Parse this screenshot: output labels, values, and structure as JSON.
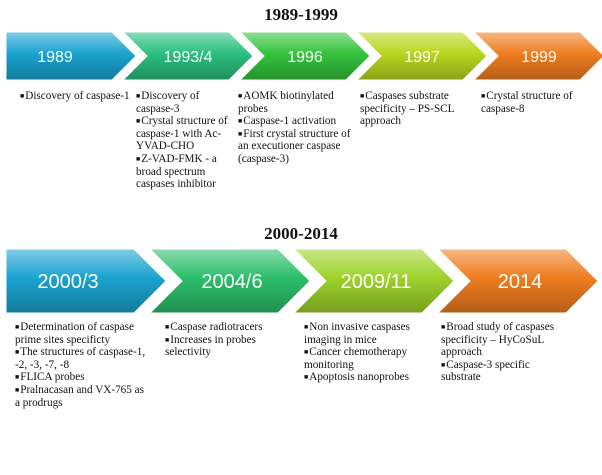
{
  "periods": [
    {
      "title": "1989-1999",
      "milestones": [
        {
          "label": "1989",
          "color": "#1aa3cf",
          "notes": [
            "Discovery of caspase-1"
          ]
        },
        {
          "label": "1993/4",
          "color": "#2bbf7f",
          "notes": [
            "Discovery of caspase-3",
            "Crystal structure of caspase-1 with Ac-YVAD-CHO",
            "Z-VAD-FMK - a broad spectrum caspases inhibitor"
          ]
        },
        {
          "label": "1996",
          "color": "#34c33c",
          "notes": [
            "AOMK biotinylated probes",
            "Caspase-1 activation",
            "First crystal structure of an executioner caspase (caspase-3)"
          ]
        },
        {
          "label": "1997",
          "color": "#b9d61e",
          "notes": [
            "Caspases substrate specificity – PS-SCL approach"
          ]
        },
        {
          "label": "1999",
          "color": "#ee7d1f",
          "notes": [
            "Crystal structure of caspase-8"
          ]
        }
      ]
    },
    {
      "title": "2000-2014",
      "milestones": [
        {
          "label": "2000/3",
          "color": "#1aa3cf",
          "notes": [
            "Determination of caspase prime sites specificty",
            "The structures of caspase-1, -2, -3, -7, -8",
            "FLICA probes",
            "Pralnacasan and VX-765 as a prodrugs"
          ]
        },
        {
          "label": "2004/6",
          "color": "#2bbf6a",
          "notes": [
            "Caspase radiotracers",
            "Increases in probes selectivity"
          ]
        },
        {
          "label": "2009/11",
          "color": "#9ed22a",
          "notes": [
            "Non invasive caspases imaging in mice",
            "Cancer chemotherapy monitoring",
            "Apoptosis nanoprobes"
          ]
        },
        {
          "label": "2014",
          "color": "#ee7d1f",
          "notes": [
            "Broad study of caspases specificity – HyCoSuL approach",
            "Caspase-3 specific substrate"
          ]
        }
      ]
    }
  ]
}
